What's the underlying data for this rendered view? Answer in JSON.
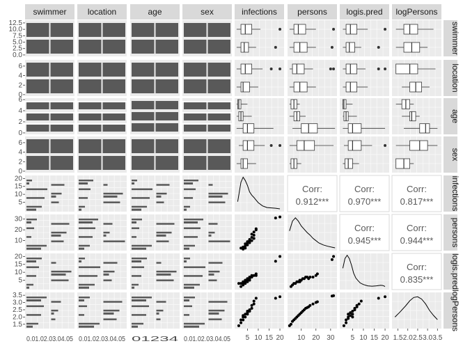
{
  "chart_data": {
    "type": "scatter",
    "title": "",
    "variables": [
      "swimmer",
      "location",
      "age",
      "sex",
      "infections",
      "persons",
      "logis.pred",
      "logPersons"
    ],
    "strip_labels": {
      "top": [
        "swimmer",
        "location",
        "age",
        "sex",
        "infections",
        "persons",
        "logis.pred",
        "logPersons"
      ],
      "right": [
        "swimmer",
        "location",
        "age",
        "sex",
        "infections",
        "persons",
        "logis.pred",
        "logPersons"
      ]
    },
    "axes": {
      "swimmer": {
        "ticks": [
          "0.0",
          "2.5",
          "5.0",
          "7.5",
          "10.0",
          "12.5"
        ],
        "range": [
          0,
          13
        ]
      },
      "location": {
        "ticks": [
          "0",
          "2",
          "4",
          "6"
        ],
        "range": [
          0,
          7
        ]
      },
      "age": {
        "ticks": [
          "0",
          "2",
          "4",
          "6"
        ],
        "range": [
          0,
          6
        ]
      },
      "sex": {
        "ticks": [
          "0",
          "2",
          "4",
          "6"
        ],
        "range": [
          0,
          7
        ]
      },
      "infections": {
        "ticks": [
          "5",
          "10",
          "15",
          "20"
        ],
        "range": [
          0,
          21
        ]
      },
      "persons": {
        "ticks": [
          "10",
          "20",
          "30"
        ],
        "range": [
          2,
          33
        ]
      },
      "logis.pred": {
        "ticks": [
          "5",
          "10",
          "15",
          "20"
        ],
        "range": [
          0,
          21
        ]
      },
      "logPersons": {
        "ticks": [
          "1.5",
          "2.0",
          "2.5",
          "3.0",
          "3.5"
        ],
        "range": [
          1.3,
          3.6
        ]
      }
    },
    "bottom_tick_labels": {
      "swimmer": "0.01.02.03.04.05",
      "location": "0.01.02.03.04.05",
      "age": "01234",
      "sex": "0.01.02.03.04.05",
      "infections": [
        "5",
        "10",
        "15",
        "20"
      ],
      "persons": [
        "10",
        "20",
        "30"
      ],
      "logis.pred": [
        "5",
        "10",
        "15",
        "20"
      ],
      "logPersons": [
        "1.5",
        "2.0",
        "2.5",
        "3.0",
        "3.5"
      ]
    },
    "correlations": [
      {
        "row": "infections",
        "col": "persons",
        "label": "Corr:",
        "value": "0.912***"
      },
      {
        "row": "infections",
        "col": "logis.pred",
        "label": "Corr:",
        "value": "0.970***"
      },
      {
        "row": "infections",
        "col": "logPersons",
        "label": "Corr:",
        "value": "0.817***"
      },
      {
        "row": "persons",
        "col": "logis.pred",
        "label": "Corr:",
        "value": "0.945***"
      },
      {
        "row": "persons",
        "col": "logPersons",
        "label": "Corr:",
        "value": "0.944***"
      },
      {
        "row": "logis.pred",
        "col": "logPersons",
        "label": "Corr:",
        "value": "0.835***"
      }
    ],
    "boxplots": {
      "swimmer": {
        "infections": [
          {
            "q1": 2,
            "med": 3.5,
            "q3": 5.5,
            "lo": 0,
            "hi": 9,
            "out": [
              18
            ]
          },
          {
            "q1": 2,
            "med": 4,
            "q3": 7,
            "lo": 0,
            "hi": 11,
            "out": [
              20
            ]
          }
        ],
        "persons": [
          {
            "q1": 5,
            "med": 9,
            "q3": 14,
            "lo": 2,
            "hi": 20,
            "out": [
              31
            ]
          },
          {
            "q1": 5,
            "med": 8,
            "q3": 13,
            "lo": 2,
            "hi": 20,
            "out": [
              32
            ]
          }
        ],
        "logis.pred": [
          {
            "q1": 2,
            "med": 3.5,
            "q3": 6,
            "lo": 0.5,
            "hi": 9,
            "out": [
              17
            ]
          },
          {
            "q1": 2,
            "med": 4,
            "q3": 7,
            "lo": 0.5,
            "hi": 12,
            "out": [
              20
            ]
          }
        ],
        "logPersons": [
          {
            "q1": 1.8,
            "med": 2.2,
            "q3": 2.6,
            "lo": 1.4,
            "hi": 3.0,
            "out": []
          },
          {
            "q1": 1.8,
            "med": 2.1,
            "q3": 2.5,
            "lo": 1.4,
            "hi": 3.3,
            "out": []
          }
        ]
      },
      "location": {
        "infections": [
          {
            "q1": 2,
            "med": 3,
            "q3": 6,
            "lo": 0,
            "hi": 10,
            "out": []
          },
          {
            "q1": 2,
            "med": 4,
            "q3": 7,
            "lo": 0,
            "hi": 12,
            "out": [
              16,
              20
            ]
          }
        ],
        "persons": [
          {
            "q1": 5,
            "med": 9,
            "q3": 14,
            "lo": 2,
            "hi": 20,
            "out": []
          },
          {
            "q1": 4,
            "med": 7,
            "q3": 12,
            "lo": 2,
            "hi": 18,
            "out": [
              30,
              32
            ]
          }
        ],
        "logis.pred": [
          {
            "q1": 2,
            "med": 4,
            "q3": 7,
            "lo": 0.5,
            "hi": 12,
            "out": []
          },
          {
            "q1": 2,
            "med": 4,
            "q3": 7,
            "lo": 0.5,
            "hi": 11,
            "out": [
              17,
              20
            ]
          }
        ],
        "logPersons": [
          {
            "q1": 2.1,
            "med": 2.4,
            "q3": 2.7,
            "lo": 1.7,
            "hi": 3.1,
            "out": []
          },
          {
            "q1": 1.4,
            "med": 2.1,
            "q3": 2.5,
            "lo": 1.4,
            "hi": 3.4,
            "out": []
          }
        ]
      },
      "age": {
        "infections": [
          {
            "q1": 3,
            "med": 5,
            "q3": 8,
            "lo": 0,
            "hi": 17,
            "out": []
          },
          {
            "q1": 1,
            "med": 2,
            "q3": 3,
            "lo": 0,
            "hi": 7,
            "out": []
          },
          {
            "q1": 0.5,
            "med": 1,
            "q3": 2,
            "lo": 0,
            "hi": 5,
            "out": []
          }
        ],
        "persons": [
          {
            "q1": 10,
            "med": 15,
            "q3": 21,
            "lo": 4,
            "hi": 33,
            "out": []
          },
          {
            "q1": 5,
            "med": 7,
            "q3": 9,
            "lo": 2,
            "hi": 13,
            "out": []
          },
          {
            "q1": 3,
            "med": 5,
            "q3": 7,
            "lo": 2,
            "hi": 9,
            "out": []
          }
        ],
        "logis.pred": [
          {
            "q1": 3,
            "med": 5,
            "q3": 9,
            "lo": 0.5,
            "hi": 20,
            "out": []
          },
          {
            "q1": 1,
            "med": 2,
            "q3": 3,
            "lo": 0.5,
            "hi": 7,
            "out": []
          },
          {
            "q1": 0.5,
            "med": 1,
            "q3": 2,
            "lo": 0.3,
            "hi": 5,
            "out": []
          }
        ],
        "logPersons": [
          {
            "q1": 2.6,
            "med": 2.9,
            "q3": 3.1,
            "lo": 1.8,
            "hi": 3.5,
            "out": []
          },
          {
            "q1": 2.1,
            "med": 2.2,
            "q3": 2.4,
            "lo": 1.7,
            "hi": 2.6,
            "out": []
          },
          {
            "q1": 1.7,
            "med": 1.9,
            "q3": 2.1,
            "lo": 1.4,
            "hi": 2.3,
            "out": []
          }
        ]
      },
      "sex": {
        "infections": [
          {
            "q1": 2,
            "med": 3,
            "q3": 5,
            "lo": 0,
            "hi": 9,
            "out": []
          },
          {
            "q1": 3,
            "med": 5,
            "q3": 8,
            "lo": 1,
            "hi": 13,
            "out": [
              16,
              20
            ]
          }
        ],
        "persons": [
          {
            "q1": 3,
            "med": 5,
            "q3": 7,
            "lo": 2,
            "hi": 10,
            "out": []
          },
          {
            "q1": 7,
            "med": 12,
            "q3": 19,
            "lo": 2,
            "hi": 32,
            "out": []
          }
        ],
        "logis.pred": [
          {
            "q1": 1.5,
            "med": 3,
            "q3": 5,
            "lo": 0.5,
            "hi": 8,
            "out": []
          },
          {
            "q1": 3,
            "med": 5,
            "q3": 9,
            "lo": 1,
            "hi": 14,
            "out": [
              20
            ]
          }
        ],
        "logPersons": [
          {
            "q1": 1.4,
            "med": 1.8,
            "q3": 2.1,
            "lo": 1.4,
            "hi": 2.3,
            "out": []
          },
          {
            "q1": 2.1,
            "med": 2.6,
            "q3": 3.0,
            "lo": 1.4,
            "hi": 3.5,
            "out": []
          }
        ]
      }
    },
    "bar_segments": [
      [
        12,
        2.5
      ],
      [
        5,
        2
      ],
      [
        2.5,
        5
      ],
      [
        7,
        1
      ],
      [
        2,
        0
      ],
      [
        7,
        1
      ],
      [
        1.5,
        3
      ],
      [
        9,
        0.5
      ]
    ],
    "scatter_points": {
      "infections_vs_persons": [
        [
          3,
          2
        ],
        [
          4,
          3
        ],
        [
          2,
          3
        ],
        [
          3,
          4
        ],
        [
          5,
          6
        ],
        [
          4,
          7
        ],
        [
          6,
          8
        ],
        [
          5,
          9
        ],
        [
          7,
          10
        ],
        [
          6,
          11
        ],
        [
          8,
          12
        ],
        [
          7,
          13
        ],
        [
          8,
          15
        ],
        [
          7,
          16
        ],
        [
          8,
          18
        ],
        [
          9,
          20
        ],
        [
          9,
          21
        ],
        [
          18,
          31
        ],
        [
          20,
          32
        ],
        [
          4,
          5
        ],
        [
          5,
          8
        ],
        [
          6,
          10
        ]
      ],
      "infections_vs_logis.pred": [
        [
          1,
          3
        ],
        [
          2,
          3
        ],
        [
          3,
          3
        ],
        [
          3,
          4
        ],
        [
          4,
          4
        ],
        [
          4,
          5
        ],
        [
          5,
          5
        ],
        [
          5,
          6
        ],
        [
          6,
          6
        ],
        [
          6,
          7
        ],
        [
          7,
          7
        ],
        [
          7,
          8
        ],
        [
          8,
          8
        ],
        [
          9,
          8
        ],
        [
          9,
          9
        ],
        [
          18,
          17
        ],
        [
          20,
          20
        ],
        [
          3,
          2
        ],
        [
          5,
          4
        ],
        [
          6,
          5
        ],
        [
          2,
          1
        ],
        [
          4,
          3
        ]
      ],
      "persons_vs_logis.pred": [
        [
          3,
          1
        ],
        [
          4,
          2
        ],
        [
          5,
          3
        ],
        [
          6,
          3
        ],
        [
          8,
          4
        ],
        [
          9,
          5
        ],
        [
          10,
          5
        ],
        [
          11,
          6
        ],
        [
          12,
          6
        ],
        [
          13,
          7
        ],
        [
          14,
          7
        ],
        [
          15,
          6
        ],
        [
          16,
          7
        ],
        [
          18,
          7
        ],
        [
          20,
          8
        ],
        [
          21,
          9
        ],
        [
          31,
          18
        ],
        [
          32,
          20
        ],
        [
          7,
          4
        ],
        [
          9,
          4
        ]
      ],
      "infections_vs_logPersons": [
        [
          1,
          1.4
        ],
        [
          2,
          1.6
        ],
        [
          2,
          1.8
        ],
        [
          3,
          1.8
        ],
        [
          3,
          2.0
        ],
        [
          4,
          2.0
        ],
        [
          4,
          2.2
        ],
        [
          5,
          2.2
        ],
        [
          5,
          2.4
        ],
        [
          6,
          2.4
        ],
        [
          6,
          2.5
        ],
        [
          7,
          2.6
        ],
        [
          7,
          2.8
        ],
        [
          8,
          2.9
        ],
        [
          8,
          3.1
        ],
        [
          9,
          3.3
        ],
        [
          20,
          3.4
        ],
        [
          18,
          3.3
        ],
        [
          3,
          2.1
        ],
        [
          5,
          2.3
        ]
      ],
      "persons_vs_logPersons": [
        [
          3,
          1.5
        ],
        [
          4,
          1.7
        ],
        [
          5,
          1.8
        ],
        [
          6,
          1.9
        ],
        [
          7,
          2.0
        ],
        [
          8,
          2.1
        ],
        [
          9,
          2.2
        ],
        [
          10,
          2.3
        ],
        [
          11,
          2.4
        ],
        [
          12,
          2.5
        ],
        [
          13,
          2.6
        ],
        [
          14,
          2.65
        ],
        [
          15,
          2.7
        ],
        [
          16,
          2.8
        ],
        [
          18,
          2.9
        ],
        [
          20,
          3.0
        ],
        [
          21,
          3.05
        ],
        [
          31,
          3.45
        ],
        [
          32,
          3.47
        ],
        [
          2,
          1.4
        ]
      ],
      "logis.pred_vs_logPersons": [
        [
          1,
          1.4
        ],
        [
          2,
          1.6
        ],
        [
          2,
          1.8
        ],
        [
          3,
          1.9
        ],
        [
          3,
          2.0
        ],
        [
          4,
          2.1
        ],
        [
          4,
          2.3
        ],
        [
          5,
          2.2
        ],
        [
          5,
          2.4
        ],
        [
          6,
          2.5
        ],
        [
          6,
          2.6
        ],
        [
          7,
          2.7
        ],
        [
          7,
          2.8
        ],
        [
          8,
          2.9
        ],
        [
          9,
          3.1
        ],
        [
          17,
          3.3
        ],
        [
          20,
          3.4
        ],
        [
          3,
          2.2
        ],
        [
          5,
          2.0
        ]
      ]
    },
    "densities": {
      "infections": [
        [
          0.5,
          0.25
        ],
        [
          2,
          0.85
        ],
        [
          3,
          1.0
        ],
        [
          4,
          0.9
        ],
        [
          5,
          0.75
        ],
        [
          6,
          0.55
        ],
        [
          7,
          0.45
        ],
        [
          8,
          0.38
        ],
        [
          9,
          0.3
        ],
        [
          10,
          0.22
        ],
        [
          12,
          0.12
        ],
        [
          14,
          0.07
        ],
        [
          16,
          0.06
        ],
        [
          18,
          0.05
        ],
        [
          20,
          0.03
        ]
      ],
      "persons": [
        [
          2,
          0.55
        ],
        [
          4,
          0.85
        ],
        [
          6,
          0.95
        ],
        [
          8,
          0.85
        ],
        [
          10,
          0.7
        ],
        [
          12,
          0.6
        ],
        [
          14,
          0.5
        ],
        [
          16,
          0.42
        ],
        [
          18,
          0.32
        ],
        [
          20,
          0.25
        ],
        [
          22,
          0.18
        ],
        [
          25,
          0.12
        ],
        [
          28,
          0.08
        ],
        [
          31,
          0.05
        ],
        [
          33,
          0.03
        ]
      ],
      "logis.pred": [
        [
          0.5,
          0.6
        ],
        [
          1.5,
          0.9
        ],
        [
          2.5,
          1.0
        ],
        [
          3.5,
          0.9
        ],
        [
          4.5,
          0.7
        ],
        [
          5.5,
          0.45
        ],
        [
          6.5,
          0.3
        ],
        [
          7.5,
          0.22
        ],
        [
          8.5,
          0.15
        ],
        [
          10,
          0.1
        ],
        [
          12,
          0.06
        ],
        [
          14,
          0.05
        ],
        [
          16,
          0.06
        ],
        [
          18,
          0.08
        ],
        [
          19,
          0.07
        ],
        [
          20,
          0.04
        ]
      ],
      "logPersons": [
        [
          1.35,
          0.3
        ],
        [
          1.6,
          0.45
        ],
        [
          1.9,
          0.65
        ],
        [
          2.1,
          0.8
        ],
        [
          2.3,
          0.9
        ],
        [
          2.5,
          0.92
        ],
        [
          2.7,
          0.85
        ],
        [
          2.9,
          0.7
        ],
        [
          3.1,
          0.5
        ],
        [
          3.3,
          0.35
        ],
        [
          3.5,
          0.22
        ]
      ]
    },
    "grid": true
  }
}
